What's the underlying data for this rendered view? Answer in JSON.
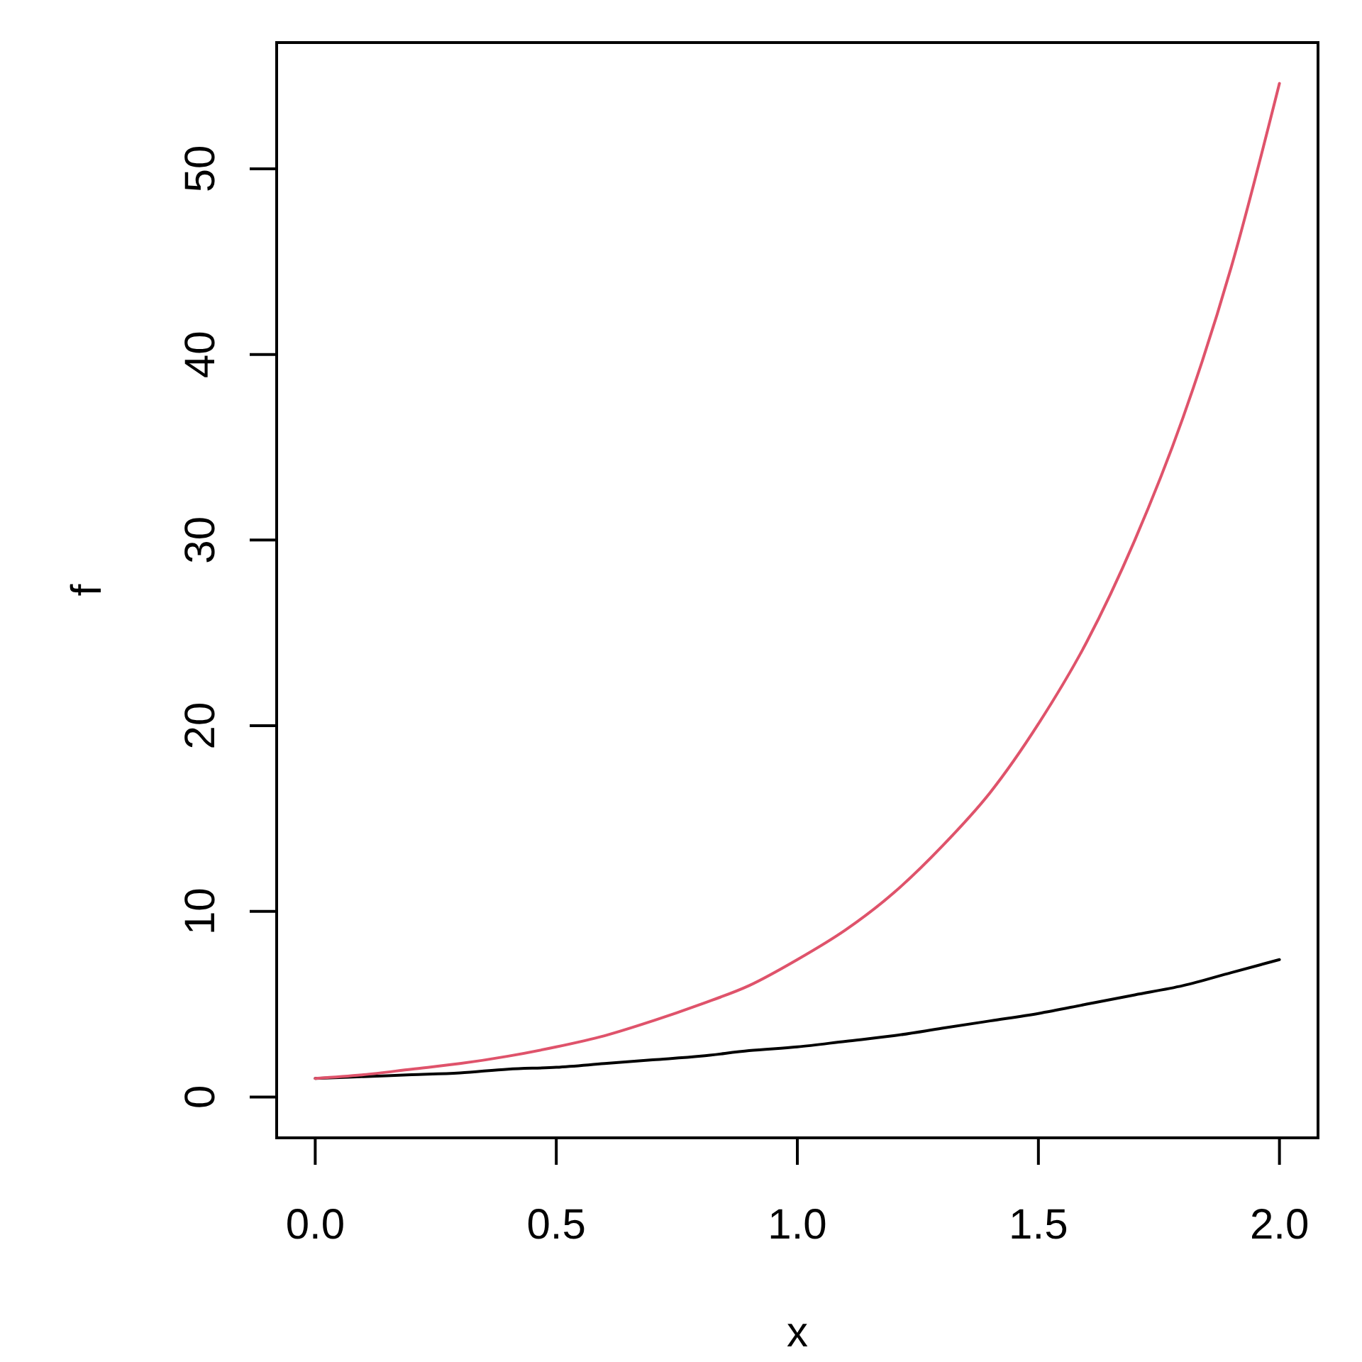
{
  "chart_data": {
    "type": "line",
    "xlabel": "x",
    "ylabel": "f",
    "x": [
      0,
      0.1,
      0.2,
      0.3,
      0.4,
      0.5,
      0.6,
      0.7,
      0.8,
      0.9,
      1.0,
      1.1,
      1.2,
      1.3,
      1.4,
      1.5,
      1.6,
      1.7,
      1.8,
      1.9,
      2.0
    ],
    "series": [
      {
        "color": "#000000",
        "values": [
          1.0,
          1.1,
          1.2,
          1.3,
          1.5,
          1.6,
          1.8,
          2.0,
          2.2,
          2.5,
          2.7,
          3.0,
          3.3,
          3.7,
          4.1,
          4.5,
          5.0,
          5.5,
          6.0,
          6.7,
          7.4
        ]
      },
      {
        "color": "#df536b",
        "values": [
          1.0,
          1.2,
          1.5,
          1.8,
          2.2,
          2.7,
          3.3,
          4.1,
          5.0,
          6.0,
          7.4,
          9.0,
          11.0,
          13.5,
          16.4,
          20.1,
          24.5,
          30.0,
          36.6,
          44.7,
          54.6
        ]
      }
    ],
    "xlim": [
      -0.08,
      2.08
    ],
    "ylim": [
      -2.2,
      56.8
    ],
    "xticks": [
      {
        "value": 0,
        "label": "0.0"
      },
      {
        "value": 0.5,
        "label": "0.5"
      },
      {
        "value": 1,
        "label": "1.0"
      },
      {
        "value": 1.5,
        "label": "1.5"
      },
      {
        "value": 2,
        "label": "2.0"
      }
    ],
    "yticks": [
      0,
      10,
      20,
      30,
      40,
      50
    ]
  }
}
